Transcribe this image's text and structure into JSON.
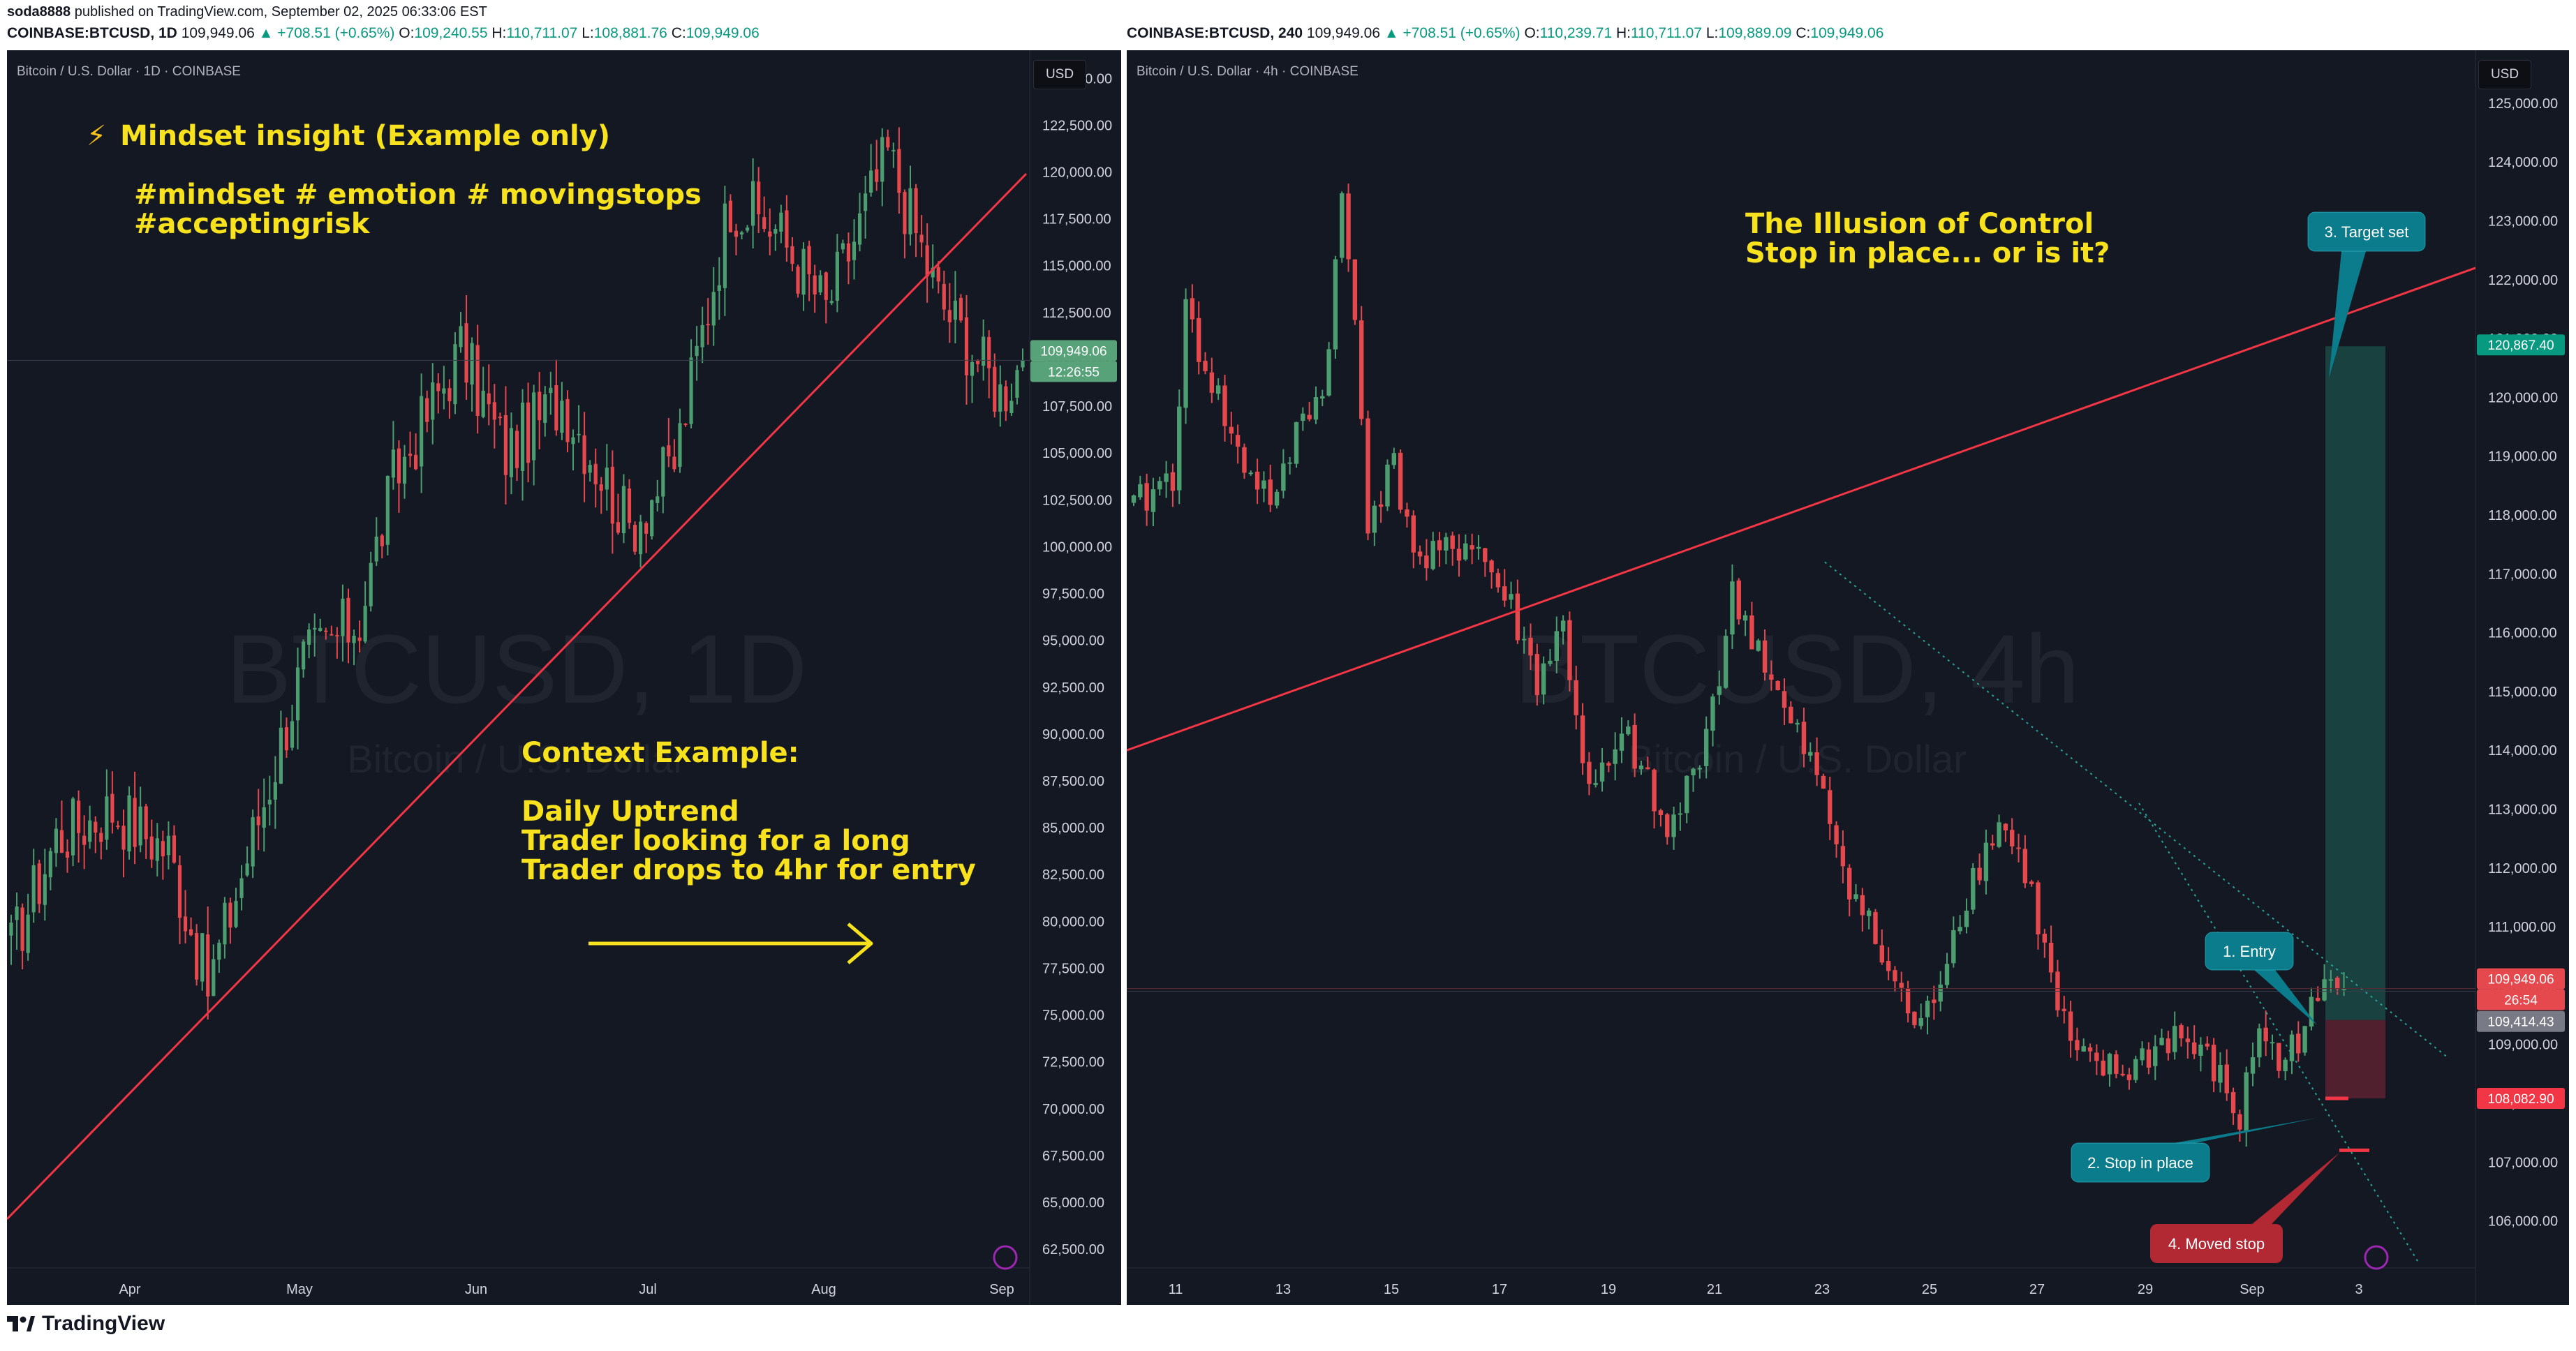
{
  "header": {
    "author": "soda8888",
    "published_text": "published on TradingView.com, September 02, 2025 06:33:06 EST"
  },
  "left_symbol": {
    "symbol": "COINBASE:BTCUSD, 1D",
    "price": "109,949.06",
    "change": "▲ +708.51 (+0.65%)",
    "o_label": "O:",
    "o": "109,240.55",
    "h_label": "H:",
    "h": "110,711.07",
    "l_label": "L:",
    "l": "108,881.76",
    "c_label": "C:",
    "c": "109,949.06"
  },
  "right_symbol": {
    "symbol": "COINBASE:BTCUSD, 240",
    "price": "109,949.06",
    "change": "▲ +708.51 (+0.65%)",
    "o_label": "O:",
    "o": "110,239.71",
    "h_label": "H:",
    "h": "110,711.07",
    "l_label": "L:",
    "l": "109,889.09",
    "c_label": "C:",
    "c": "109,949.06"
  },
  "left_panel": {
    "title": "Bitcoin / U.S. Dollar · 1D · COINBASE",
    "currency": "USD",
    "watermark_main": "BTCUSD, 1D",
    "watermark_sub": "Bitcoin / U.S. Dollar",
    "insight_title": "Mindset insight (Example only)",
    "insight_tags": "#mindset # emotion # movingstops\n#acceptingrisk",
    "context_text": "Context Example:\n\nDaily Uptrend\nTrader looking for a long\nTrader drops to 4hr for entry"
  },
  "right_panel": {
    "title": "Bitcoin / U.S. Dollar · 4h · COINBASE",
    "currency": "USD",
    "watermark_main": "BTCUSD, 4h",
    "watermark_sub": "Bitcoin / U.S. Dollar",
    "illusion_text": "The Illusion of Control\nStop in place... or is it?"
  },
  "colors": {
    "background": "#141823",
    "bull": "#4c9d6f",
    "bear": "#e5484d",
    "trendline": "#f23645",
    "annotation": "#f7e21d",
    "callout_teal": "#0b7c8c",
    "callout_red": "#b22833"
  },
  "footer": {
    "brand": "TradingView"
  },
  "chart_data": [
    {
      "type": "candlestick",
      "title": "Bitcoin / U.S. Dollar · 1D · COINBASE",
      "x_tick_labels": [
        "Apr",
        "May",
        "Jun",
        "Jul",
        "Aug",
        "Sep"
      ],
      "y_tick_labels": [
        "125,000.00",
        "122,500.00",
        "120,000.00",
        "117,500.00",
        "115,000.00",
        "112,500.00",
        "110,000.00",
        "107,500.00",
        "105,000.00",
        "102,500.00",
        "100,000.00",
        "97,500.00",
        "95,000.00",
        "92,500.00",
        "90,000.00",
        "87,500.00",
        "85,000.00",
        "82,500.00",
        "80,000.00",
        "77,500.00",
        "75,000.00",
        "72,500.00",
        "70,000.00",
        "67,500.00",
        "65,000.00",
        "62,500.00"
      ],
      "ylim": [
        61500,
        126500
      ],
      "last_price_label": "109,949.06",
      "countdown_label": "12:26:55",
      "approx_close_path": [
        [
          "Mar 10",
          78500
        ],
        [
          "Mar 20",
          86000
        ],
        [
          "Apr 1",
          84000
        ],
        [
          "Apr 9",
          76500
        ],
        [
          "Apr 22",
          93500
        ],
        [
          "May 1",
          96500
        ],
        [
          "May 10",
          103500
        ],
        [
          "May 21",
          110500
        ],
        [
          "May 31",
          104500
        ],
        [
          "Jun 9",
          108500
        ],
        [
          "Jun 22",
          101500
        ],
        [
          "Jul 3",
          109000
        ],
        [
          "Jul 14",
          120500
        ],
        [
          "Jul 25",
          117500
        ],
        [
          "Aug 2",
          112800
        ],
        [
          "Aug 13",
          122500
        ],
        [
          "Aug 20",
          113200
        ],
        [
          "Aug 31",
          108200
        ],
        [
          "Sep 2",
          109949.06
        ]
      ],
      "trendline": {
        "from": [
          "Mar 1",
          66000
        ],
        "to": [
          "Sep 4",
          123300
        ],
        "color": "#f23645"
      }
    },
    {
      "type": "candlestick",
      "title": "Bitcoin / U.S. Dollar · 4h · COINBASE",
      "x_tick_labels": [
        "11",
        "13",
        "15",
        "17",
        "19",
        "21",
        "23",
        "25",
        "27",
        "29",
        "Sep",
        "3"
      ],
      "y_tick_labels": [
        "125,000.00",
        "124,000.00",
        "123,000.00",
        "122,000.00",
        "121,000.00",
        "120,000.00",
        "119,000.00",
        "118,000.00",
        "117,000.00",
        "116,000.00",
        "115,000.00",
        "114,000.00",
        "113,000.00",
        "112,000.00",
        "111,000.00",
        "110,000.00",
        "109,000.00",
        "108,000.00",
        "107,000.00",
        "106,000.00"
      ],
      "ylim": [
        105200,
        125900
      ],
      "price_labels": [
        {
          "value": "120,867.40",
          "color": "#089981"
        },
        {
          "value": "109,949.06",
          "color": "#f23645"
        },
        {
          "value": "26:54",
          "color": "#f23645"
        },
        {
          "value": "109,414.43",
          "color": "#787b86"
        },
        {
          "value": "108,082.90",
          "color": "#f23645"
        }
      ],
      "position": {
        "entry": 109414.43,
        "target": 120867.4,
        "stop": 108082.9
      },
      "callouts": [
        "1. Entry",
        "2. Stop in place",
        "3. Target set",
        "4. Moved stop"
      ]
    }
  ]
}
